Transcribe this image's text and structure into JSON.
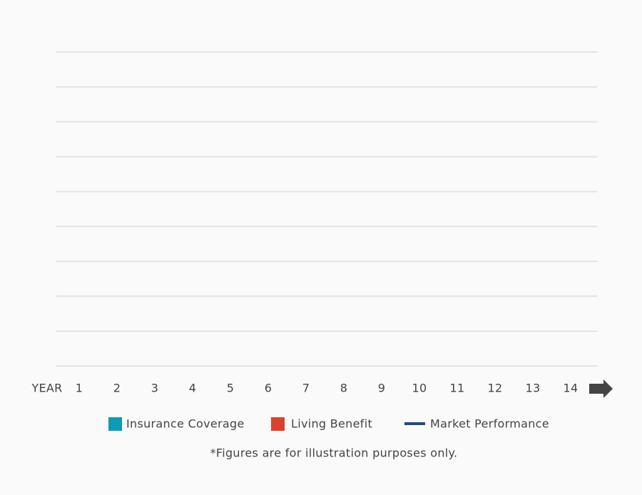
{
  "chart_data": {
    "type": "bar",
    "x_label": "YEAR",
    "categories": [
      "1",
      "2",
      "3",
      "4",
      "5",
      "6",
      "7",
      "8",
      "9",
      "10",
      "11",
      "12",
      "13",
      "14"
    ],
    "series": [
      {
        "name": "Insurance Coverage",
        "color": "#0e9bb5",
        "kind": "bar"
      },
      {
        "name": "Living Benefit",
        "color": "#d9422b",
        "kind": "bar"
      },
      {
        "name": "Market Performance",
        "color": "#234a7f",
        "kind": "line"
      }
    ],
    "grid": true,
    "note": "*Figures are for illustration purposes only."
  }
}
